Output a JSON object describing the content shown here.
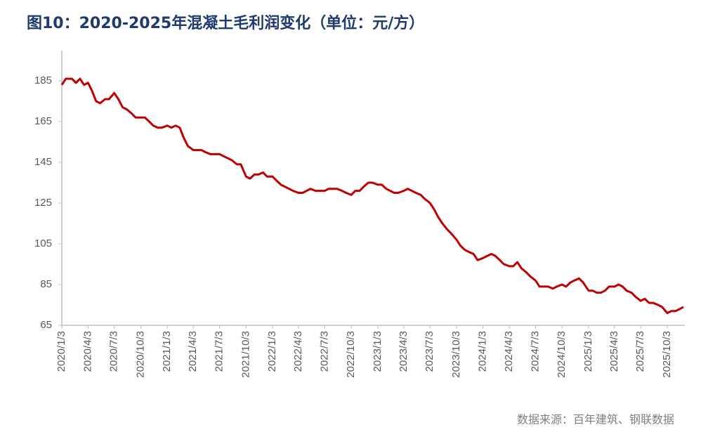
{
  "chart_data": {
    "type": "line",
    "title": "图10：2020-2025年混凝土毛利润变化（单位：元/方）",
    "source": "数据来源：百年建筑、钢联数据",
    "x": [
      "2020/1/3",
      "2020/1/17",
      "2020/2/7",
      "2020/2/21",
      "2020/3/6",
      "2020/3/20",
      "2020/4/3",
      "2020/4/17",
      "2020/5/1",
      "2020/5/15",
      "2020/6/1",
      "2020/6/15",
      "2020/7/3",
      "2020/7/17",
      "2020/8/1",
      "2020/8/15",
      "2020/9/1",
      "2020/9/15",
      "2020/10/3",
      "2020/10/17",
      "2020/11/1",
      "2020/11/15",
      "2020/12/1",
      "2020/12/15",
      "2021/1/3",
      "2021/1/17",
      "2021/2/1",
      "2021/2/15",
      "2021/3/1",
      "2021/3/15",
      "2021/4/3",
      "2021/4/17",
      "2021/5/1",
      "2021/5/15",
      "2021/6/1",
      "2021/6/15",
      "2021/7/3",
      "2021/7/17",
      "2021/8/1",
      "2021/8/15",
      "2021/9/1",
      "2021/9/15",
      "2021/10/3",
      "2021/10/17",
      "2021/11/1",
      "2021/11/15",
      "2021/12/1",
      "2021/12/15",
      "2022/1/3",
      "2022/1/17",
      "2022/2/1",
      "2022/2/15",
      "2022/3/1",
      "2022/3/15",
      "2022/4/3",
      "2022/4/17",
      "2022/5/1",
      "2022/5/15",
      "2022/6/1",
      "2022/6/15",
      "2022/7/3",
      "2022/7/17",
      "2022/8/1",
      "2022/8/15",
      "2022/9/1",
      "2022/9/15",
      "2022/10/3",
      "2022/10/17",
      "2022/11/1",
      "2022/11/15",
      "2022/12/1",
      "2022/12/15",
      "2023/1/3",
      "2023/1/17",
      "2023/2/1",
      "2023/2/15",
      "2023/3/1",
      "2023/3/15",
      "2023/4/3",
      "2023/4/17",
      "2023/5/1",
      "2023/5/15",
      "2023/6/1",
      "2023/6/15",
      "2023/7/3",
      "2023/7/17",
      "2023/8/1",
      "2023/8/15",
      "2023/9/1",
      "2023/9/15",
      "2023/10/3",
      "2023/10/17",
      "2023/11/1",
      "2023/11/15",
      "2023/12/1",
      "2023/12/15",
      "2024/1/3",
      "2024/1/17",
      "2024/2/1",
      "2024/2/15",
      "2024/3/1",
      "2024/3/15",
      "2024/4/3",
      "2024/4/17",
      "2024/5/1",
      "2024/5/15",
      "2024/6/1",
      "2024/6/15",
      "2024/7/3",
      "2024/7/17",
      "2024/8/1",
      "2024/8/15",
      "2024/9/1",
      "2024/9/15",
      "2024/10/3",
      "2024/10/17",
      "2024/11/1",
      "2024/11/15",
      "2024/12/1",
      "2024/12/15",
      "2025/1/3",
      "2025/1/17",
      "2025/2/1",
      "2025/2/15",
      "2025/3/1",
      "2025/3/15",
      "2025/4/3",
      "2025/4/17",
      "2025/5/1",
      "2025/5/15",
      "2025/6/1",
      "2025/6/15",
      "2025/7/3",
      "2025/7/17",
      "2025/8/1",
      "2025/8/15",
      "2025/9/1",
      "2025/9/15",
      "2025/10/3",
      "2025/10/17",
      "2025/11/1",
      "2025/11/15",
      "2025/11/28"
    ],
    "values": [
      183,
      186,
      186,
      184,
      186,
      183,
      184,
      180,
      175,
      174,
      176,
      176,
      179,
      176,
      172,
      171,
      169,
      167,
      167,
      167,
      165,
      163,
      162,
      162,
      163,
      162,
      163,
      162,
      157,
      153,
      151,
      151,
      151,
      150,
      149,
      149,
      149,
      148,
      147,
      146,
      144,
      144,
      138,
      137,
      139,
      139,
      140,
      138,
      138,
      136,
      134,
      133,
      132,
      131,
      130,
      130,
      131,
      132,
      131,
      131,
      131,
      132,
      132,
      132,
      131,
      130,
      129,
      131,
      131,
      133,
      135,
      135,
      134,
      134,
      132,
      131,
      130,
      130,
      131,
      132,
      131,
      130,
      129,
      127,
      125,
      122,
      118,
      115,
      112,
      110,
      107,
      104,
      102,
      101,
      100,
      97,
      98,
      99,
      100,
      99,
      97,
      95,
      94,
      94,
      96,
      93,
      91,
      89,
      87,
      84,
      84,
      84,
      83,
      84,
      85,
      84,
      86,
      87,
      88,
      86,
      82,
      82,
      81,
      81,
      82,
      84,
      84,
      85,
      84,
      82,
      81,
      79,
      77,
      78,
      76,
      76,
      75,
      74,
      71,
      72,
      72,
      73,
      74
    ],
    "color": "#c00000",
    "xlim": [
      "2020/1/3",
      "2025/11/28"
    ],
    "xticks": [
      "2020/1/3",
      "2020/4/3",
      "2020/7/3",
      "2020/10/3",
      "2021/1/3",
      "2021/4/3",
      "2021/7/3",
      "2021/10/3",
      "2022/1/3",
      "2022/4/3",
      "2022/7/3",
      "2022/10/3",
      "2023/1/3",
      "2023/4/3",
      "2023/7/3",
      "2023/10/3",
      "2024/1/3",
      "2024/4/3",
      "2024/7/3",
      "2024/10/3",
      "2025/1/3",
      "2025/4/3",
      "2025/7/3",
      "2025/10/3"
    ],
    "ylim": [
      65,
      200
    ],
    "yticks": [
      65,
      85,
      105,
      125,
      145,
      165,
      185
    ],
    "grid": false
  }
}
